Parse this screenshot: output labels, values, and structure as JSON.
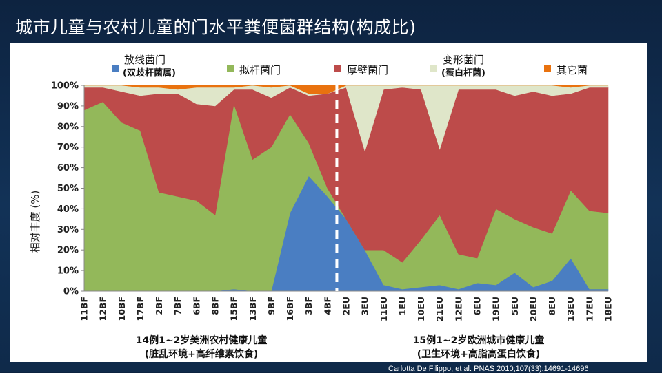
{
  "title": "城市儿童与农村儿童的门水平粪便菌群结构(构成比)",
  "citation": "Carlotta De Filippo, et al.      PNAS   2010;107(33):14691-14696",
  "legend": [
    {
      "name": "放线菌门",
      "sub": "(双歧杆菌属)",
      "color": "#4a7ec2"
    },
    {
      "name": "拟杆菌门",
      "sub": "",
      "color": "#93b85a"
    },
    {
      "name": "厚壁菌门",
      "sub": "",
      "color": "#bd4b4a"
    },
    {
      "name": "变形菌门",
      "sub": "(蛋白杆菌)",
      "color": "#dfe6c9"
    },
    {
      "name": "其它菌",
      "sub": "",
      "color": "#e9720f"
    }
  ],
  "groups": [
    {
      "line1": "14例1~2岁美洲农村健康儿童",
      "line2": "(脏乱环境+高纤维素饮食)"
    },
    {
      "line1": "15例1~2岁欧洲城市健康儿童",
      "line2": "(卫生环境+高脂高蛋白饮食)"
    }
  ],
  "chart_data": {
    "type": "area",
    "stacked": true,
    "ylabel": "相对丰度 (%)",
    "ylim": [
      0,
      100
    ],
    "yticks": [
      "0%",
      "10%",
      "20%",
      "30%",
      "40%",
      "50%",
      "60%",
      "70%",
      "80%",
      "90%",
      "100%"
    ],
    "categories": [
      "11BF",
      "12BF",
      "10BF",
      "17BF",
      "2BF",
      "7BF",
      "6BF",
      "8BF",
      "15BF",
      "13BF",
      "9BF",
      "16BF",
      "3BF",
      "4BF",
      "2EU",
      "3EU",
      "11EU",
      "1EU",
      "10EU",
      "21EU",
      "12EU",
      "6EU",
      "19EU",
      "5EU",
      "20EU",
      "8EU",
      "13EU",
      "17EU",
      "18EU"
    ],
    "divider_after_index": 13,
    "series": [
      {
        "name": "放线菌门",
        "values": [
          0,
          0,
          0,
          0,
          0,
          0,
          0,
          0,
          1,
          0,
          0,
          38,
          56,
          46,
          35,
          20,
          3,
          1,
          2,
          3,
          1,
          4,
          3,
          9,
          2,
          5,
          16,
          1,
          1
        ]
      },
      {
        "name": "拟杆菌门",
        "values": [
          88,
          92,
          82,
          78,
          48,
          46,
          44,
          37,
          90,
          64,
          70,
          48,
          16,
          4,
          0,
          0,
          17,
          13,
          23,
          34,
          17,
          12,
          37,
          26,
          29,
          23,
          33,
          38,
          37
        ]
      },
      {
        "name": "厚壁菌门",
        "values": [
          11,
          7,
          15,
          17,
          48,
          50,
          47,
          53,
          7,
          34,
          24,
          13,
          23,
          46,
          64,
          48,
          78,
          85,
          73,
          32,
          80,
          82,
          58,
          60,
          66,
          67,
          47,
          60,
          61
        ]
      },
      {
        "name": "变形菌门",
        "values": [
          1,
          1,
          3,
          4,
          3,
          2,
          8,
          9,
          1,
          2,
          5,
          1,
          1,
          0,
          1,
          32,
          2,
          1,
          2,
          31,
          2,
          2,
          2,
          5,
          3,
          5,
          3,
          1,
          1
        ]
      },
      {
        "name": "其它菌",
        "values": [
          0,
          0,
          0,
          1,
          1,
          2,
          1,
          1,
          1,
          0,
          1,
          0,
          4,
          4,
          0,
          0,
          0,
          0,
          0,
          0,
          0,
          0,
          0,
          0,
          0,
          0,
          1,
          0,
          0
        ]
      }
    ]
  }
}
